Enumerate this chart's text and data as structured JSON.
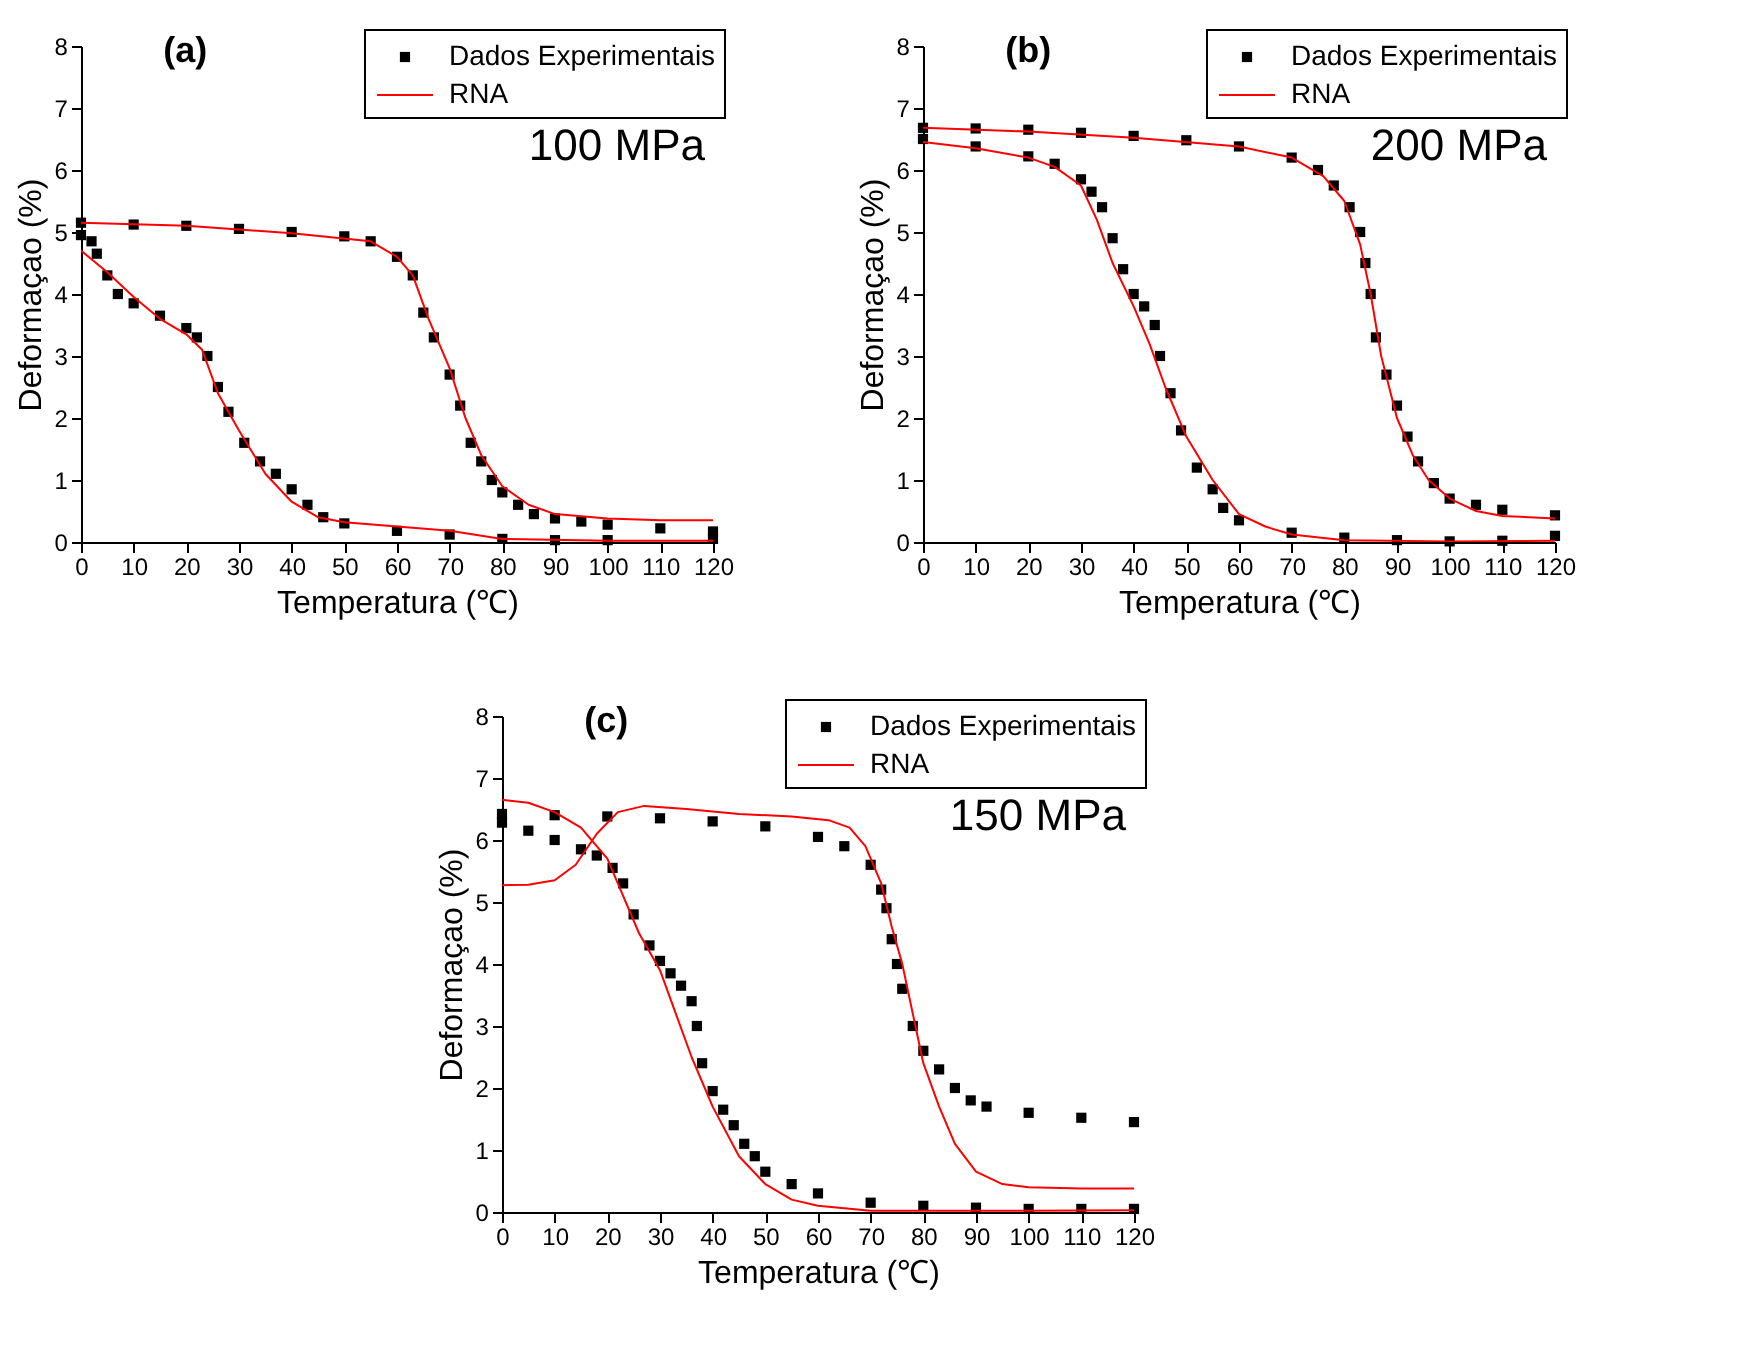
{
  "chart_data": [
    {
      "type": "scatter",
      "title": "(a)",
      "xlabel": "Temperatura (℃)",
      "ylabel": "Deformaçao (%)",
      "annotations": [
        "100 MPa"
      ],
      "xlim": [
        0,
        120
      ],
      "ylim": [
        0,
        8
      ],
      "xticks": [
        0,
        10,
        20,
        30,
        40,
        50,
        60,
        70,
        80,
        90,
        100,
        110,
        120
      ],
      "yticks": [
        0,
        1,
        2,
        3,
        4,
        5,
        6,
        7,
        8
      ],
      "grid": false,
      "legend": "top right",
      "series": [
        {
          "name": "Dados Experimentais",
          "type": "scatter",
          "marker": "square",
          "color": "#000000",
          "x": [
            0,
            10,
            20,
            30,
            40,
            50,
            55,
            60,
            63,
            65,
            67,
            70,
            72,
            74,
            76,
            78,
            80,
            83,
            86,
            90,
            95,
            100,
            110,
            120,
            120,
            100,
            90,
            80,
            70,
            60,
            50,
            46,
            43,
            40,
            37,
            34,
            31,
            28,
            26,
            24,
            22,
            20,
            15,
            10,
            7,
            5,
            3,
            2,
            0
          ],
          "values": [
            5.15,
            5.12,
            5.1,
            5.05,
            5.0,
            4.93,
            4.85,
            4.6,
            4.3,
            3.7,
            3.3,
            2.7,
            2.2,
            1.6,
            1.3,
            1.0,
            0.8,
            0.6,
            0.45,
            0.38,
            0.33,
            0.28,
            0.22,
            0.17,
            0.05,
            0.03,
            0.03,
            0.05,
            0.12,
            0.18,
            0.3,
            0.4,
            0.6,
            0.85,
            1.1,
            1.3,
            1.6,
            2.1,
            2.5,
            3.0,
            3.3,
            3.45,
            3.65,
            3.85,
            4.0,
            4.3,
            4.65,
            4.85,
            4.95
          ]
        },
        {
          "name": "RNA",
          "type": "line",
          "color": "#ff0000",
          "x": [
            0,
            20,
            40,
            55,
            60,
            63,
            66,
            70,
            73,
            76,
            80,
            85,
            90,
            100,
            110,
            120
          ],
          "values": [
            5.15,
            5.1,
            4.98,
            4.85,
            4.6,
            4.3,
            3.6,
            2.8,
            2.0,
            1.4,
            0.9,
            0.6,
            0.45,
            0.38,
            0.35,
            0.35
          ]
        },
        {
          "type": "line",
          "color": "#ff0000",
          "x": [
            0,
            5,
            10,
            15,
            20,
            23,
            26,
            30,
            35,
            40,
            45,
            50,
            60,
            70,
            80,
            100,
            120
          ],
          "values": [
            4.7,
            4.35,
            3.95,
            3.6,
            3.35,
            3.1,
            2.4,
            1.8,
            1.1,
            0.65,
            0.4,
            0.32,
            0.25,
            0.18,
            0.05,
            0.02,
            0.02
          ]
        }
      ]
    },
    {
      "type": "scatter",
      "title": "(b)",
      "xlabel": "Temperatura (℃)",
      "ylabel": "Deformaçao (%)",
      "annotations": [
        "200 MPa"
      ],
      "xlim": [
        0,
        120
      ],
      "ylim": [
        0,
        8
      ],
      "xticks": [
        0,
        10,
        20,
        30,
        40,
        50,
        60,
        70,
        80,
        90,
        100,
        110,
        120
      ],
      "yticks": [
        0,
        1,
        2,
        3,
        4,
        5,
        6,
        7,
        8
      ],
      "grid": false,
      "legend": "top right",
      "series": [
        {
          "name": "Dados Experimentais",
          "type": "scatter",
          "marker": "square",
          "color": "#000000",
          "x": [
            0,
            10,
            20,
            30,
            40,
            50,
            60,
            70,
            75,
            78,
            81,
            83,
            84,
            85,
            86,
            88,
            90,
            92,
            94,
            97,
            100,
            105,
            110,
            120,
            120,
            110,
            100,
            90,
            80,
            70,
            60,
            57,
            55,
            52,
            49,
            47,
            45,
            44,
            42,
            40,
            38,
            36,
            34,
            32,
            30,
            25,
            20,
            10,
            0
          ],
          "values": [
            6.68,
            6.67,
            6.65,
            6.6,
            6.55,
            6.48,
            6.38,
            6.2,
            6.0,
            5.75,
            5.4,
            5.0,
            4.5,
            4.0,
            3.3,
            2.7,
            2.2,
            1.7,
            1.3,
            0.95,
            0.7,
            0.6,
            0.52,
            0.43,
            0.1,
            0.02,
            0.01,
            0.03,
            0.07,
            0.15,
            0.35,
            0.55,
            0.85,
            1.2,
            1.8,
            2.4,
            3.0,
            3.5,
            3.8,
            4.0,
            4.4,
            4.9,
            5.4,
            5.65,
            5.85,
            6.1,
            6.22,
            6.38,
            6.5
          ]
        },
        {
          "name": "RNA",
          "type": "line",
          "color": "#ff0000",
          "x": [
            0,
            20,
            40,
            60,
            70,
            76,
            80,
            83,
            85,
            87,
            90,
            93,
            96,
            100,
            105,
            110,
            120
          ],
          "values": [
            6.68,
            6.62,
            6.52,
            6.38,
            6.2,
            5.9,
            5.5,
            4.8,
            4.0,
            3.0,
            2.0,
            1.4,
            1.0,
            0.7,
            0.5,
            0.42,
            0.38
          ]
        },
        {
          "type": "line",
          "color": "#ff0000",
          "x": [
            0,
            10,
            20,
            25,
            30,
            33,
            36,
            40,
            43,
            46,
            50,
            55,
            60,
            65,
            70,
            80,
            100,
            120
          ],
          "values": [
            6.45,
            6.35,
            6.2,
            6.05,
            5.75,
            5.2,
            4.5,
            3.8,
            3.2,
            2.5,
            1.7,
            1.0,
            0.45,
            0.25,
            0.12,
            0.03,
            0.01,
            0.02
          ]
        }
      ]
    },
    {
      "type": "scatter",
      "title": "(c)",
      "xlabel": "Temperatura (℃)",
      "ylabel": "Deformaçao (%)",
      "annotations": [
        "150 MPa"
      ],
      "xlim": [
        0,
        120
      ],
      "ylim": [
        0,
        8
      ],
      "xticks": [
        0,
        10,
        20,
        30,
        40,
        50,
        60,
        70,
        80,
        90,
        100,
        110,
        120
      ],
      "yticks": [
        0,
        1,
        2,
        3,
        4,
        5,
        6,
        7,
        8
      ],
      "grid": false,
      "legend": "top right",
      "series": [
        {
          "name": "Dados Experimentais",
          "type": "scatter",
          "marker": "square",
          "color": "#000000",
          "x": [
            0,
            10,
            20,
            30,
            40,
            50,
            60,
            65,
            70,
            72,
            73,
            74,
            75,
            76,
            78,
            80,
            83,
            86,
            89,
            92,
            100,
            110,
            120,
            120,
            110,
            100,
            90,
            80,
            70,
            60,
            55,
            50,
            48,
            46,
            44,
            42,
            40,
            38,
            37,
            36,
            34,
            32,
            30,
            28,
            25,
            23,
            21,
            18,
            15,
            10,
            5,
            0
          ],
          "values": [
            6.42,
            6.4,
            6.38,
            6.35,
            6.3,
            6.22,
            6.05,
            5.9,
            5.6,
            5.2,
            4.9,
            4.4,
            4.0,
            3.6,
            3.0,
            2.6,
            2.3,
            2.0,
            1.8,
            1.7,
            1.6,
            1.52,
            1.45,
            0.05,
            0.05,
            0.05,
            0.07,
            0.1,
            0.15,
            0.3,
            0.45,
            0.65,
            0.9,
            1.1,
            1.4,
            1.65,
            1.95,
            2.4,
            3.0,
            3.4,
            3.65,
            3.85,
            4.05,
            4.3,
            4.8,
            5.3,
            5.55,
            5.75,
            5.85,
            6.0,
            6.15,
            6.28
          ]
        },
        {
          "name": "RNA",
          "type": "line",
          "color": "#ff0000",
          "x": [
            0,
            5,
            10,
            14,
            18,
            22,
            27,
            35,
            45,
            55,
            62,
            66,
            69,
            72,
            74,
            76,
            78,
            80,
            83,
            86,
            90,
            95,
            100,
            110,
            120
          ],
          "values": [
            5.27,
            5.28,
            5.35,
            5.6,
            6.1,
            6.45,
            6.55,
            6.5,
            6.42,
            6.38,
            6.32,
            6.2,
            5.9,
            5.3,
            4.6,
            4.0,
            3.2,
            2.4,
            1.7,
            1.1,
            0.65,
            0.45,
            0.4,
            0.38,
            0.38
          ]
        },
        {
          "type": "line",
          "color": "#ff0000",
          "x": [
            0,
            5,
            10,
            15,
            20,
            23,
            26,
            30,
            33,
            36,
            40,
            45,
            50,
            55,
            60,
            70,
            80,
            100,
            120
          ],
          "values": [
            6.65,
            6.6,
            6.45,
            6.2,
            5.7,
            5.1,
            4.5,
            3.9,
            3.2,
            2.5,
            1.7,
            0.9,
            0.45,
            0.2,
            0.1,
            0.02,
            0.02,
            0.02,
            0.03
          ]
        }
      ]
    }
  ]
}
